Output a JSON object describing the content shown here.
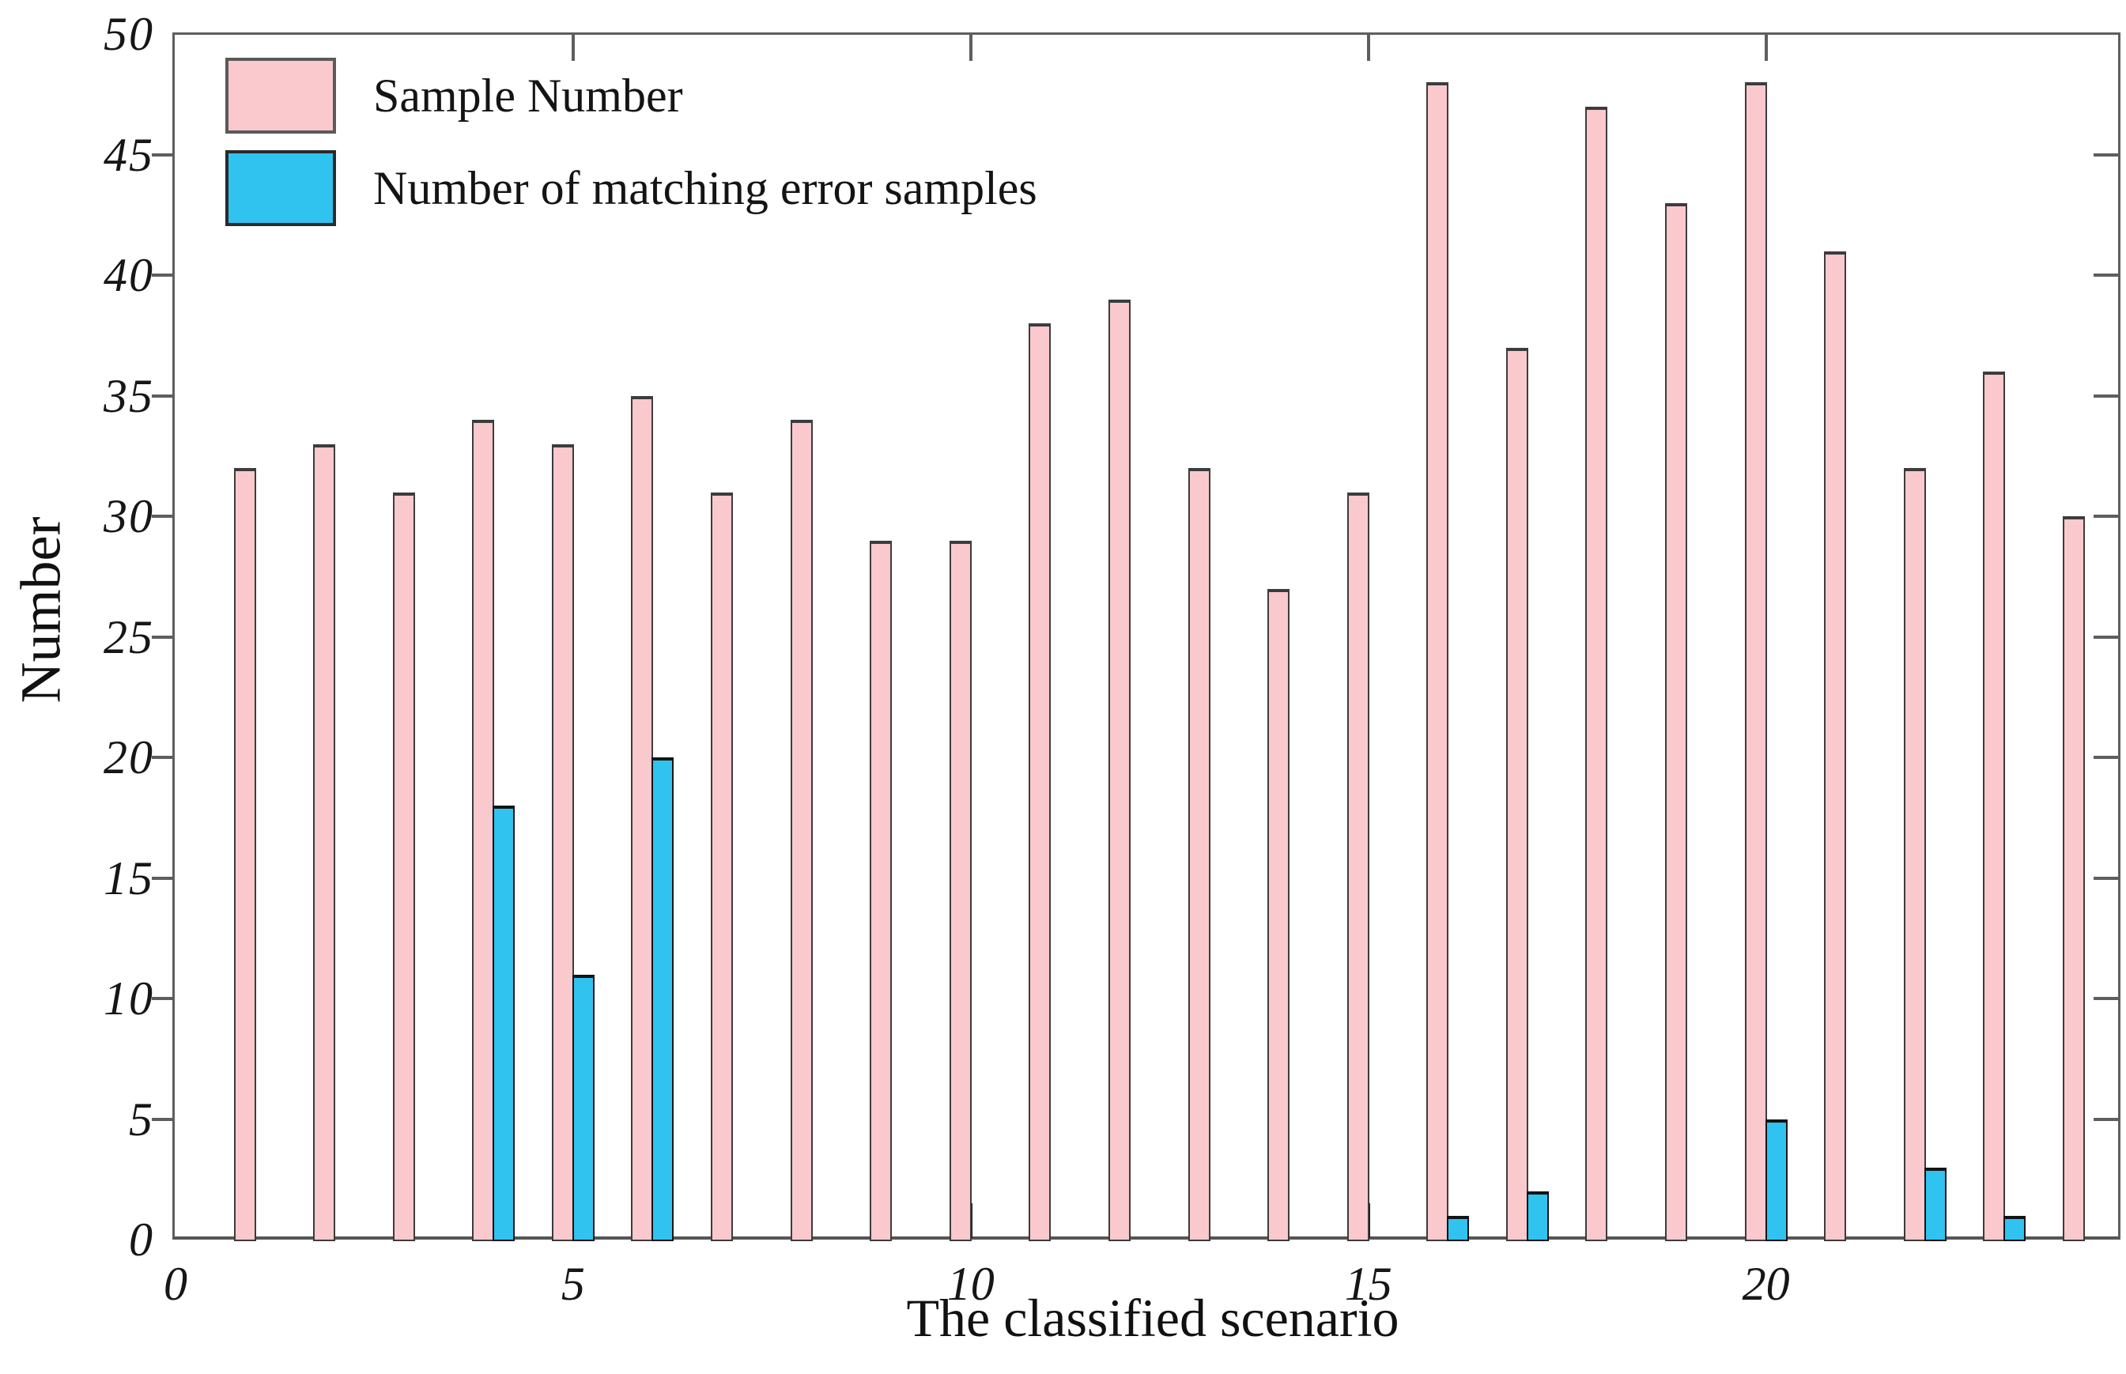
{
  "figure": {
    "y_axis_label": "Number",
    "x_axis_label": "The classified scenario"
  },
  "legend": [
    {
      "label": "Sample Number",
      "color": "#f9c9cd"
    },
    {
      "label": "Number of matching error samples",
      "color": "#30c3f0"
    }
  ],
  "chart_data": {
    "type": "bar",
    "title": "",
    "xlabel": "The classified scenario",
    "ylabel": "Number",
    "x": [
      1,
      2,
      3,
      4,
      5,
      6,
      7,
      8,
      9,
      10,
      11,
      12,
      13,
      14,
      15,
      16,
      17,
      18,
      19,
      20,
      21,
      22,
      23,
      24
    ],
    "series": [
      {
        "name": "Sample Number",
        "color": "#f9c9cd",
        "edge_color": "#3c3c3c",
        "values": [
          32,
          33,
          31,
          34,
          33,
          35,
          31,
          34,
          29,
          29,
          38,
          39,
          32,
          27,
          31,
          48,
          37,
          47,
          43,
          48,
          41,
          32,
          36,
          30
        ]
      },
      {
        "name": "Number of matching error samples",
        "color": "#30c3f0",
        "edge_color": "#141414",
        "values": [
          0,
          0,
          0,
          18,
          11,
          20,
          0,
          0,
          0,
          0,
          0,
          0,
          0,
          0,
          0,
          1,
          2,
          0,
          0,
          5,
          0,
          3,
          1,
          0
        ]
      }
    ],
    "xlim": [
      0,
      24.5
    ],
    "ylim": [
      0,
      50
    ],
    "x_tick_values": [
      0,
      5,
      10,
      15,
      20
    ],
    "y_tick_values": [
      0,
      5,
      10,
      15,
      20,
      25,
      30,
      35,
      40,
      45,
      50
    ],
    "grid": false,
    "legend_position": "upper-left",
    "spines": "box-with-inward-mirror-ticks"
  }
}
